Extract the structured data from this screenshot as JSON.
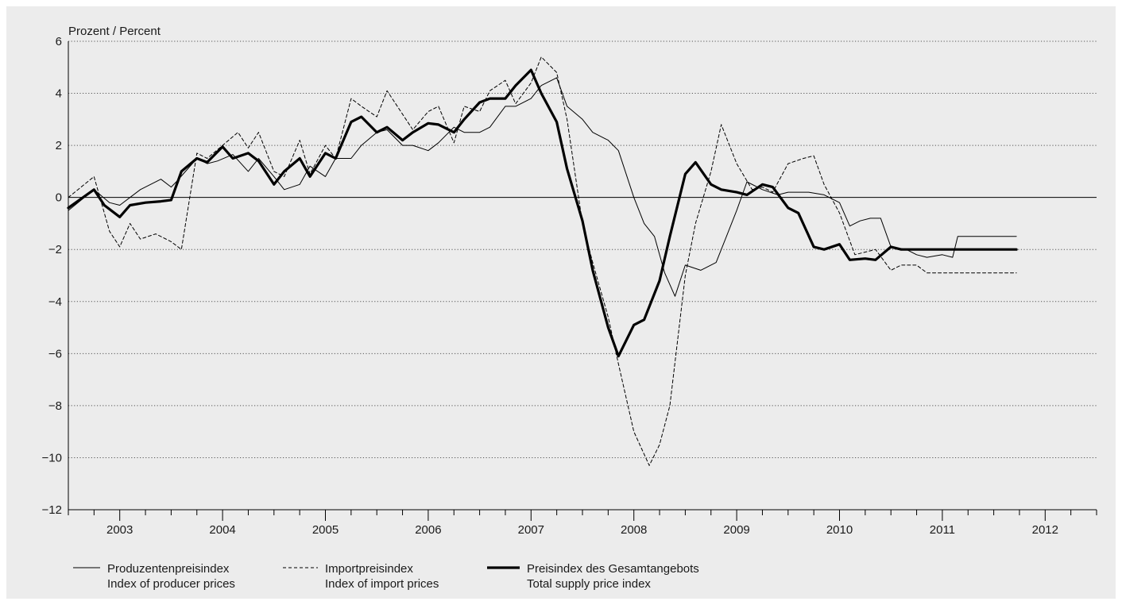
{
  "chart_data": {
    "type": "line",
    "ylabel": "Prozent / Percent",
    "ylim": [
      -12,
      6
    ],
    "y_ticks": [
      "6",
      "4",
      "2",
      "0",
      "−2",
      "−4",
      "−6",
      "−8",
      "−10",
      "−12"
    ],
    "y_tick_values": [
      6,
      4,
      2,
      0,
      -2,
      -4,
      -6,
      -8,
      -10,
      -12
    ],
    "x_range": [
      2002.5,
      2012.5
    ],
    "x_ticks": [
      "2003",
      "2004",
      "2005",
      "2006",
      "2007",
      "2008",
      "2009",
      "2010",
      "2011",
      "2012"
    ],
    "grid": "horizontal dotted",
    "legend_position": "bottom",
    "series": [
      {
        "name_de": "Produzentenpreisindex",
        "name_en": "Index of producer prices",
        "style": "thin",
        "color": "#000000",
        "x": [
          2002.5,
          2002.75,
          2002.9,
          2003.0,
          2003.2,
          2003.4,
          2003.5,
          2003.55,
          2003.75,
          2003.85,
          2003.95,
          2004.1,
          2004.25,
          2004.35,
          2004.5,
          2004.6,
          2004.75,
          2004.85,
          2005.0,
          2005.1,
          2005.25,
          2005.35,
          2005.5,
          2005.6,
          2005.75,
          2005.85,
          2006.0,
          2006.1,
          2006.25,
          2006.35,
          2006.5,
          2006.6,
          2006.75,
          2006.85,
          2007.0,
          2007.1,
          2007.25,
          2007.35,
          2007.5,
          2007.6,
          2007.75,
          2007.85,
          2008.0,
          2008.1,
          2008.2,
          2008.3,
          2008.4,
          2008.5,
          2008.65,
          2008.8,
          2008.9,
          2009.0,
          2009.1,
          2009.25,
          2009.4,
          2009.5,
          2009.7,
          2009.85,
          2010.0,
          2010.1,
          2010.2,
          2010.3,
          2010.4,
          2010.5,
          2010.65,
          2010.75,
          2010.85,
          2011.0,
          2011.1,
          2011.15,
          2011.25,
          2011.35,
          2011.5,
          2011.65,
          2011.72
        ],
        "values": [
          -0.5,
          0.3,
          -0.2,
          -0.3,
          0.3,
          0.7,
          0.4,
          0.6,
          1.5,
          1.3,
          1.4,
          1.65,
          1.0,
          1.5,
          0.8,
          0.3,
          0.5,
          1.2,
          0.8,
          1.5,
          1.5,
          2.0,
          2.5,
          2.6,
          2.0,
          2.0,
          1.8,
          2.1,
          2.7,
          2.5,
          2.5,
          2.7,
          3.5,
          3.5,
          3.8,
          4.3,
          4.6,
          3.5,
          3.0,
          2.5,
          2.2,
          1.8,
          0.0,
          -1.0,
          -1.5,
          -2.9,
          -3.8,
          -2.6,
          -2.8,
          -2.5,
          -1.5,
          -0.5,
          0.6,
          0.3,
          0.1,
          0.2,
          0.2,
          0.1,
          -0.2,
          -1.1,
          -0.9,
          -0.8,
          -0.8,
          -1.9,
          -2.0,
          -2.2,
          -2.3,
          -2.2,
          -2.3,
          -1.5,
          -1.5,
          -1.5,
          -1.5,
          -1.5,
          -1.5
        ]
      },
      {
        "name_de": "Importpreisindex",
        "name_en": "Index of import prices",
        "style": "dashed",
        "color": "#000000",
        "x": [
          2002.5,
          2002.75,
          2002.9,
          2003.0,
          2003.1,
          2003.2,
          2003.35,
          2003.5,
          2003.6,
          2003.75,
          2003.85,
          2004.0,
          2004.15,
          2004.25,
          2004.35,
          2004.5,
          2004.6,
          2004.75,
          2004.85,
          2005.0,
          2005.1,
          2005.25,
          2005.35,
          2005.5,
          2005.6,
          2005.75,
          2005.85,
          2006.0,
          2006.1,
          2006.25,
          2006.35,
          2006.5,
          2006.6,
          2006.75,
          2006.85,
          2007.0,
          2007.1,
          2007.25,
          2007.35,
          2007.5,
          2007.6,
          2007.75,
          2007.85,
          2008.0,
          2008.15,
          2008.25,
          2008.35,
          2008.5,
          2008.6,
          2008.75,
          2008.85,
          2009.0,
          2009.15,
          2009.25,
          2009.35,
          2009.5,
          2009.65,
          2009.75,
          2009.85,
          2010.0,
          2010.15,
          2010.25,
          2010.35,
          2010.5,
          2010.6,
          2010.75,
          2010.85,
          2011.0,
          2011.1,
          2011.25,
          2011.35,
          2011.5,
          2011.6,
          2011.7,
          2011.72
        ],
        "values": [
          0.0,
          0.8,
          -1.3,
          -1.9,
          -1.0,
          -1.6,
          -1.4,
          -1.7,
          -2.0,
          1.7,
          1.5,
          2.0,
          2.5,
          1.9,
          2.5,
          1.0,
          0.8,
          2.2,
          0.9,
          2.0,
          1.5,
          3.8,
          3.5,
          3.1,
          4.1,
          3.2,
          2.6,
          3.3,
          3.5,
          2.1,
          3.5,
          3.3,
          4.1,
          4.5,
          3.6,
          4.4,
          5.4,
          4.8,
          3.0,
          -1.0,
          -2.5,
          -4.6,
          -6.4,
          -9.0,
          -10.3,
          -9.5,
          -8.0,
          -3.0,
          -1.0,
          1.0,
          2.8,
          1.3,
          0.3,
          0.4,
          0.2,
          1.3,
          1.5,
          1.6,
          0.5,
          -0.6,
          -2.2,
          -2.1,
          -2.0,
          -2.8,
          -2.6,
          -2.6,
          -2.9,
          -2.9,
          -2.9,
          -2.9,
          -2.9,
          -2.9,
          -2.9,
          -2.9,
          -2.9
        ]
      },
      {
        "name_de": "Preisindex des Gesamtangebots",
        "name_en": "Total supply price index",
        "style": "thick",
        "color": "#000000",
        "x": [
          2002.5,
          2002.75,
          2002.85,
          2003.0,
          2003.1,
          2003.25,
          2003.4,
          2003.5,
          2003.6,
          2003.75,
          2003.85,
          2004.0,
          2004.1,
          2004.25,
          2004.35,
          2004.5,
          2004.6,
          2004.75,
          2004.85,
          2005.0,
          2005.1,
          2005.25,
          2005.35,
          2005.5,
          2005.6,
          2005.75,
          2005.85,
          2006.0,
          2006.1,
          2006.25,
          2006.35,
          2006.5,
          2006.6,
          2006.75,
          2006.85,
          2007.0,
          2007.1,
          2007.25,
          2007.35,
          2007.5,
          2007.6,
          2007.75,
          2007.85,
          2008.0,
          2008.1,
          2008.25,
          2008.35,
          2008.5,
          2008.6,
          2008.75,
          2008.85,
          2009.0,
          2009.1,
          2009.25,
          2009.35,
          2009.5,
          2009.6,
          2009.75,
          2009.85,
          2010.0,
          2010.1,
          2010.25,
          2010.35,
          2010.5,
          2010.6,
          2010.75,
          2010.85,
          2011.0,
          2011.1,
          2011.25,
          2011.35,
          2011.5,
          2011.6,
          2011.7,
          2011.72
        ],
        "values": [
          -0.4,
          0.3,
          -0.3,
          -0.75,
          -0.3,
          -0.2,
          -0.15,
          -0.1,
          1.0,
          1.5,
          1.35,
          1.95,
          1.5,
          1.7,
          1.4,
          0.5,
          1.0,
          1.5,
          0.8,
          1.7,
          1.5,
          2.9,
          3.1,
          2.5,
          2.7,
          2.2,
          2.5,
          2.85,
          2.8,
          2.5,
          3.0,
          3.65,
          3.8,
          3.8,
          4.3,
          4.9,
          4.0,
          2.9,
          1.1,
          -0.9,
          -2.8,
          -5.0,
          -6.1,
          -4.9,
          -4.7,
          -3.2,
          -1.5,
          0.9,
          1.35,
          0.5,
          0.3,
          0.2,
          0.1,
          0.5,
          0.4,
          -0.4,
          -0.6,
          -1.9,
          -2.0,
          -1.8,
          -2.4,
          -2.35,
          -2.4,
          -1.9,
          -2.0,
          -2.0,
          -2.0,
          -2.0,
          -2.0,
          -2.0,
          -2.0,
          -2.0,
          -2.0,
          -2.0,
          -2.0
        ]
      }
    ]
  }
}
